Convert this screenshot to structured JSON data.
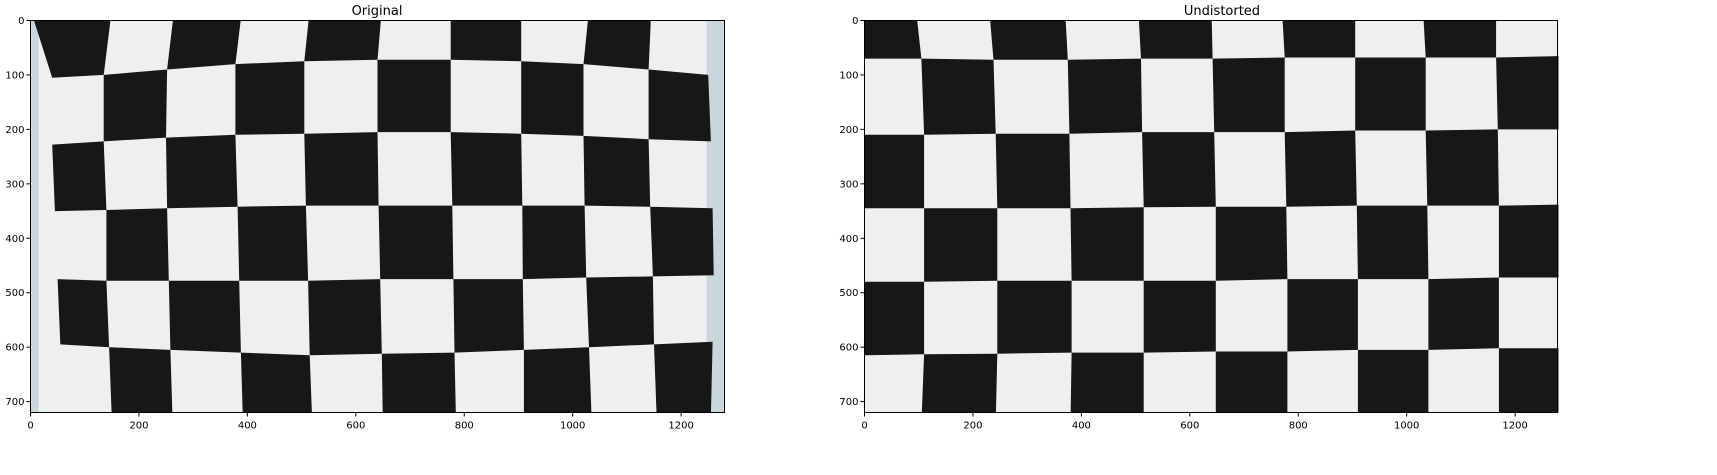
{
  "figure": {
    "panels": [
      {
        "title": "Original",
        "xticks": [
          "0",
          "200",
          "400",
          "600",
          "800",
          "1000",
          "1200"
        ],
        "yticks": [
          "0",
          "100",
          "200",
          "300",
          "400",
          "500",
          "600",
          "700"
        ]
      },
      {
        "title": "Undistorted",
        "xticks": [
          "0",
          "200",
          "400",
          "600",
          "800",
          "1000",
          "1200"
        ],
        "yticks": [
          "0",
          "100",
          "200",
          "300",
          "400",
          "500",
          "600",
          "700"
        ]
      }
    ]
  },
  "colors": {
    "dark_square": "#171717",
    "light_square": "#eeefef",
    "paper_edge": "#c9d6dc"
  }
}
